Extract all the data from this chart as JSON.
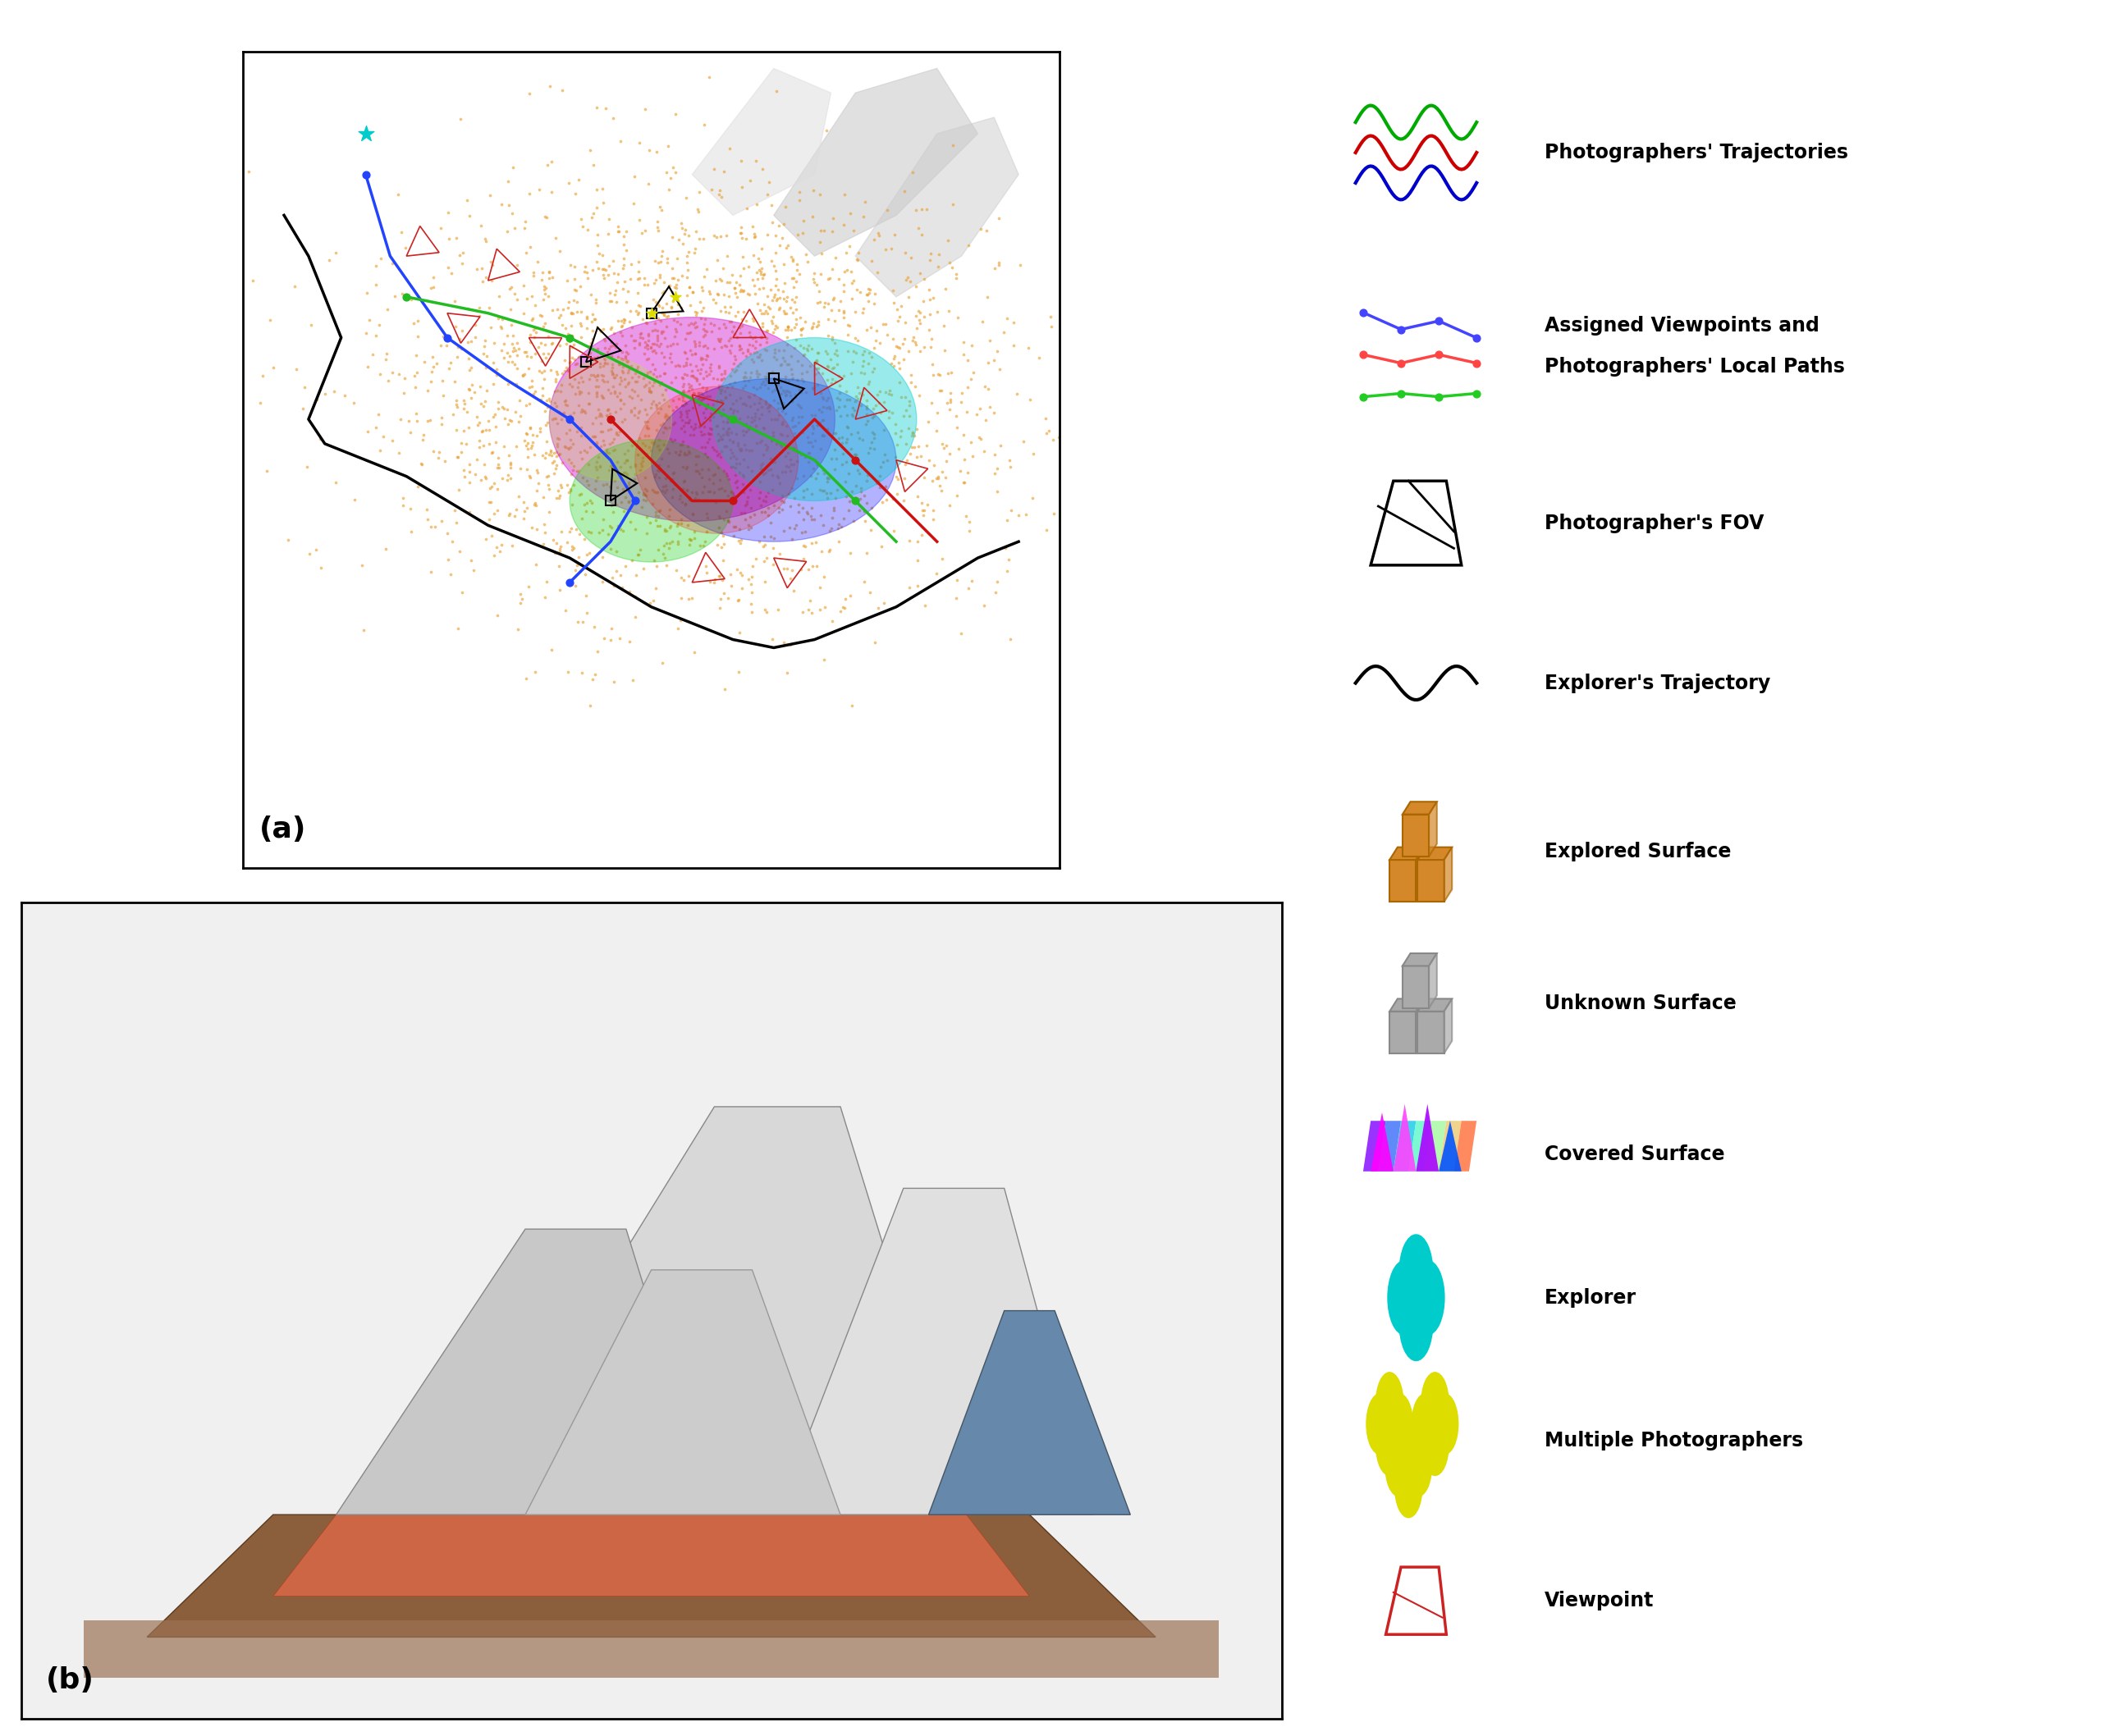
{
  "figure_width": 25.6,
  "figure_height": 21.16,
  "bg_color": "#ffffff",
  "legend_box_color": "#1a2a5e",
  "legend_bg": "#ffffff",
  "legend_items": [
    "Photographers' Trajectories",
    "Assigned Viewpoints and\nPhotographers' Local Paths",
    "Photographer's FOV",
    "Explorer's Trajectory",
    "Explored Surface",
    "Unknown Surface",
    "Covered Surface",
    "Explorer",
    "Multiple Photographers",
    "Viewpoint"
  ],
  "label_a": "(a)",
  "label_b": "(b)",
  "traj_colors": [
    "#0000cc",
    "#cc0000",
    "#00aa00"
  ],
  "path_colors": [
    "#4444ff",
    "#ff4444",
    "#44cc44"
  ],
  "fov_color": "#000000",
  "explorer_traj_color": "#000000",
  "explored_color": "#d4882a",
  "unknown_color": "#aaaaaa",
  "covered_colors": [
    "#ff00ff",
    "#00ffff",
    "#ffff00"
  ],
  "explorer_color": "#00dddd",
  "photographer_color": "#dddd00",
  "viewpoint_color": "#cc2222"
}
